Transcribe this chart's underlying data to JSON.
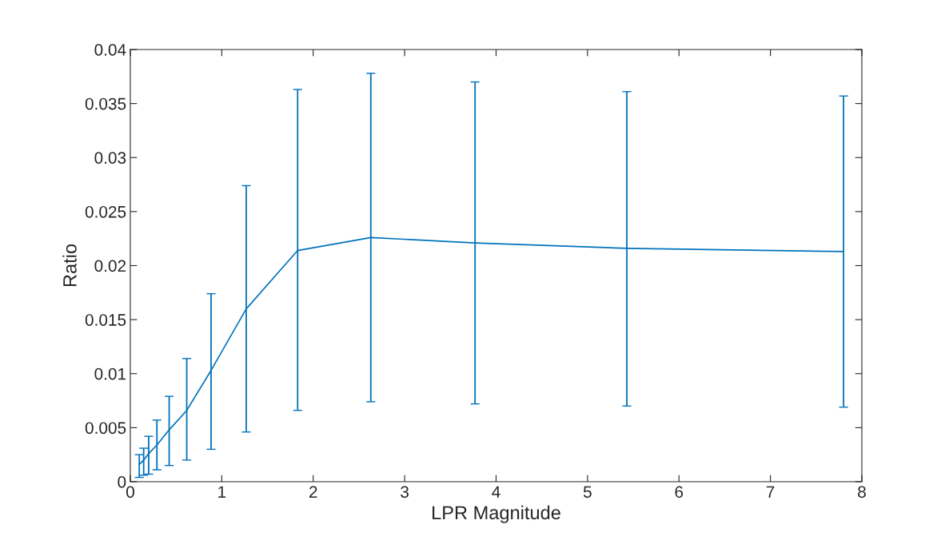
{
  "chart_data": {
    "type": "line",
    "xlabel": "LPR Magnitude",
    "ylabel": "Ratio",
    "x": [
      0.098,
      0.146,
      0.201,
      0.291,
      0.425,
      0.617,
      0.883,
      1.268,
      1.83,
      2.63,
      3.77,
      5.43,
      7.8
    ],
    "series": [
      {
        "color": "#0072bd",
        "values": [
          0.0016,
          0.002,
          0.0026,
          0.0034,
          0.0048,
          0.0066,
          0.0103,
          0.016,
          0.0214,
          0.0226,
          0.0221,
          0.0216,
          0.0213
        ],
        "errors": [
          [
            0.0004,
            0.0025
          ],
          [
            0.0006,
            0.0031
          ],
          [
            0.0007,
            0.0042
          ],
          [
            0.0011,
            0.0057
          ],
          [
            0.0015,
            0.0079
          ],
          [
            0.002,
            0.0114
          ],
          [
            0.003,
            0.0174
          ],
          [
            0.0046,
            0.0274
          ],
          [
            0.0066,
            0.0363
          ],
          [
            0.0074,
            0.0378
          ],
          [
            0.0072,
            0.037
          ],
          [
            0.007,
            0.0361
          ],
          [
            0.0069,
            0.0357
          ]
        ]
      }
    ],
    "xlim": [
      0,
      8
    ],
    "xticks": [
      0,
      1,
      2,
      3,
      4,
      5,
      6,
      7,
      8
    ],
    "ylim": [
      0,
      0.04
    ],
    "yticks": [
      0,
      0.005,
      0.01,
      0.015,
      0.02,
      0.025,
      0.03,
      0.035,
      0.04
    ],
    "grid": false,
    "marker": "none",
    "line_style": "solid"
  }
}
